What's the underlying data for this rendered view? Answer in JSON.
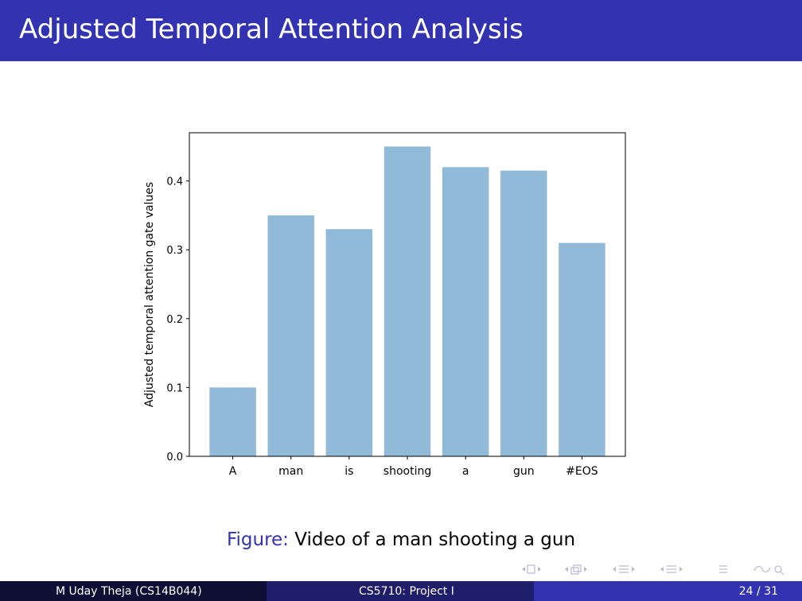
{
  "slide": {
    "title": "Adjusted Temporal Attention Analysis",
    "caption_label": "Figure:",
    "caption_text": "Video of a man shooting a gun"
  },
  "footer": {
    "author": "M Uday Theja  (CS14B044)",
    "course": "CS5710: Project I",
    "page": "24 / 31"
  },
  "colors": {
    "title_bar": "#3333b2",
    "bar_fill": "#91bad9",
    "caption_label": "#3333b2"
  },
  "chart_data": {
    "type": "bar",
    "categories": [
      "A",
      "man",
      "is",
      "shooting",
      "a",
      "gun",
      "#EOS"
    ],
    "values": [
      0.1,
      0.35,
      0.33,
      0.45,
      0.42,
      0.415,
      0.31
    ],
    "title": "",
    "xlabel": "",
    "ylabel": "Adjusted temporal attention gate values",
    "ylim": [
      0.0,
      0.47
    ],
    "yticks": [
      "0.0",
      "0.1",
      "0.2",
      "0.3",
      "0.4"
    ],
    "grid": false
  }
}
